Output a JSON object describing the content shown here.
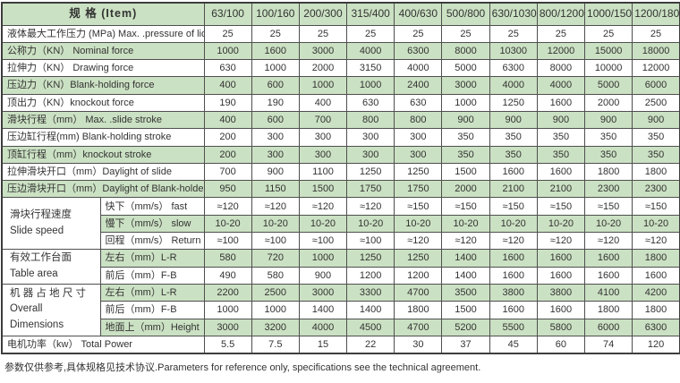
{
  "colors": {
    "row_green": "#cbe1c3",
    "border": "#4f4f4f",
    "text": "#333333"
  },
  "table": {
    "header": {
      "item_label": "规  格 (Item)",
      "columns": [
        "63/100",
        "100/160",
        "200/300",
        "315/400",
        "400/630",
        "500/800",
        "630/1030",
        "800/1200",
        "1000/1500",
        "1200/1800"
      ]
    },
    "rows": [
      {
        "label": "液体最大工作压力 (MPa)  Max. .pressure of liquid",
        "values": [
          "25",
          "25",
          "25",
          "25",
          "25",
          "25",
          "25",
          "25",
          "25",
          "25"
        ]
      },
      {
        "label": "公称力（KN） Nominal force",
        "values": [
          "1000",
          "1600",
          "3000",
          "4000",
          "6300",
          "8000",
          "10300",
          "12000",
          "15000",
          "18000"
        ]
      },
      {
        "label": "拉伸力（KN） Drawing force",
        "values": [
          "630",
          "1000",
          "2000",
          "3150",
          "4000",
          "5000",
          "6300",
          "8000",
          "10000",
          "12000"
        ]
      },
      {
        "label": "压边力（KN）Blank-holding force",
        "values": [
          "400",
          "600",
          "1000",
          "1000",
          "2400",
          "3000",
          "4000",
          "4000",
          "5000",
          "6000"
        ]
      },
      {
        "label": "顶出力（KN）knockout force",
        "values": [
          "190",
          "190",
          "400",
          "630",
          "630",
          "1000",
          "1250",
          "1600",
          "2000",
          "2500"
        ]
      },
      {
        "label": "滑块行程（mm） Max. .slide stroke",
        "values": [
          "400",
          "600",
          "700",
          "800",
          "800",
          "900",
          "900",
          "900",
          "900",
          "900"
        ]
      },
      {
        "label": "压边缸行程(mm) Blank-holding stroke",
        "values": [
          "200",
          "300",
          "300",
          "300",
          "300",
          "350",
          "350",
          "350",
          "350",
          "350"
        ]
      },
      {
        "label": "顶缸行程（mm）knockout stroke",
        "values": [
          "200",
          "300",
          "300",
          "300",
          "300",
          "350",
          "350",
          "350",
          "350",
          "350"
        ]
      },
      {
        "label": "拉伸滑块开口（mm）Daylight of slide",
        "values": [
          "700",
          "900",
          "1100",
          "1250",
          "1250",
          "1500",
          "1600",
          "1600",
          "1800",
          "1800"
        ]
      },
      {
        "label": "压边滑块开口（mm）Daylight of Blank-holder",
        "values": [
          "950",
          "1150",
          "1500",
          "1750",
          "1750",
          "2000",
          "2100",
          "2100",
          "2300",
          "2300"
        ]
      },
      {
        "group": {
          "lines": [
            "滑块行程速度",
            "Slide speed"
          ],
          "span": 3
        },
        "sublabel": "快下（mm/s） fast",
        "values": [
          "≈120",
          "≈120",
          "≈120",
          "≈120",
          "≈150",
          "≈150",
          "≈150",
          "≈150",
          "≈150",
          "≈150"
        ]
      },
      {
        "sublabel": "慢下（mm/s） slow",
        "values": [
          "10-20",
          "10-20",
          "10-20",
          "10-20",
          "10-20",
          "10-20",
          "10-20",
          "10-20",
          "10-20",
          "10-20"
        ]
      },
      {
        "sublabel": "回程（mm/s） Return",
        "values": [
          "≈100",
          "≈100",
          "≈100",
          "≈100",
          "≈120",
          "≈120",
          "≈120",
          "≈120",
          "≈120",
          "≈120"
        ]
      },
      {
        "group": {
          "lines": [
            "有效工作台面",
            "Table area"
          ],
          "span": 2
        },
        "sublabel": "左右（mm）L-R",
        "values": [
          "580",
          "720",
          "1000",
          "1250",
          "1250",
          "1400",
          "1600",
          "1600",
          "1600",
          "1800"
        ]
      },
      {
        "sublabel": "前后（mm）F-B",
        "values": [
          "490",
          "580",
          "900",
          "1200",
          "1200",
          "1400",
          "1600",
          "1600",
          "1600",
          "1600"
        ]
      },
      {
        "group": {
          "lines": [
            "机 器 占 地 尺 寸",
            "Overall",
            "Dimensions"
          ],
          "span": 3
        },
        "sublabel": "左右（mm）L-R",
        "values": [
          "2200",
          "2500",
          "3000",
          "3300",
          "4700",
          "3500",
          "3800",
          "3800",
          "4100",
          "4200"
        ]
      },
      {
        "sublabel": "前后（mm）F-B",
        "values": [
          "1000",
          "1000",
          "1400",
          "1400",
          "1800",
          "1500",
          "1600",
          "1600",
          "1800",
          "1800"
        ]
      },
      {
        "sublabel": "地面上（mm）Height",
        "values": [
          "3000",
          "3200",
          "4000",
          "4500",
          "4700",
          "5200",
          "5500",
          "5800",
          "6000",
          "6300"
        ]
      },
      {
        "label": "电机功率（kw） Total Power",
        "values": [
          "5.5",
          "7.5",
          "15",
          "22",
          "30",
          "37",
          "45",
          "60",
          "74",
          "120"
        ]
      }
    ]
  },
  "footer": {
    "note": "参数仅供参考,具体规格见技术协议.Parameters for reference only, specifications see the technical agreement."
  }
}
